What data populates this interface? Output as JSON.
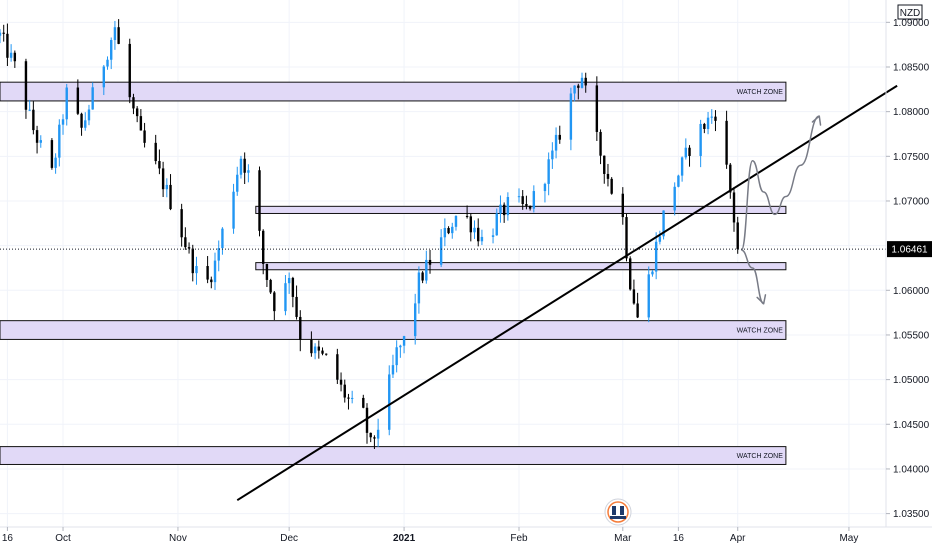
{
  "chart_data": {
    "type": "candlestick",
    "currency": "NZD",
    "current_price": 1.06461,
    "current_price_label": "1.06461",
    "ylim": [
      1.0335,
      1.0925
    ],
    "y_ticks": [
      1.035,
      1.04,
      1.045,
      1.05,
      1.055,
      1.06,
      1.065,
      1.07,
      1.075,
      1.08,
      1.085,
      1.09
    ],
    "y_tick_labels": [
      "1.03500",
      "1.04000",
      "1.04500",
      "1.05000",
      "1.05500",
      "1.06000",
      "",
      "1.07000",
      "1.07500",
      "1.08000",
      "1.08500",
      "1.09000"
    ],
    "x_axis": {
      "start": "2020-09-14",
      "end": "2021-05-11",
      "labels": [
        {
          "date": "2020-09-16",
          "text": "16",
          "bold": false
        },
        {
          "date": "2020-10-01",
          "text": "Oct",
          "bold": false
        },
        {
          "date": "2020-11-01",
          "text": "Nov",
          "bold": false
        },
        {
          "date": "2020-12-01",
          "text": "Dec",
          "bold": false
        },
        {
          "date": "2021-01-01",
          "text": "2021",
          "bold": true
        },
        {
          "date": "2021-02-01",
          "text": "Feb",
          "bold": false
        },
        {
          "date": "2021-03-01",
          "text": "Mar",
          "bold": false
        },
        {
          "date": "2021-03-16",
          "text": "16",
          "bold": false
        },
        {
          "date": "2021-04-01",
          "text": "Apr",
          "bold": false
        },
        {
          "date": "2021-05-01",
          "text": "May",
          "bold": false
        }
      ]
    },
    "price_path": [
      [
        "2020-09-14",
        1.0885
      ],
      [
        "2020-09-18",
        1.085
      ],
      [
        "2020-09-23",
        1.078
      ],
      [
        "2020-09-28",
        1.073
      ],
      [
        "2020-10-02",
        1.082
      ],
      [
        "2020-10-06",
        1.078
      ],
      [
        "2020-10-10",
        1.083
      ],
      [
        "2020-10-15",
        1.0895
      ],
      [
        "2020-10-18",
        1.083
      ],
      [
        "2020-10-22",
        1.077
      ],
      [
        "2020-10-27",
        1.073
      ],
      [
        "2020-10-31",
        1.069
      ],
      [
        "2020-11-04",
        1.064
      ],
      [
        "2020-11-08",
        1.06
      ],
      [
        "2020-11-11",
        1.063
      ],
      [
        "2020-11-15",
        1.07
      ],
      [
        "2020-11-18",
        1.075
      ],
      [
        "2020-11-21",
        1.072
      ],
      [
        "2020-11-24",
        1.063
      ],
      [
        "2020-11-28",
        1.057
      ],
      [
        "2020-12-01",
        1.062
      ],
      [
        "2020-12-04",
        1.055
      ],
      [
        "2020-12-08",
        1.053
      ],
      [
        "2020-12-12",
        1.052
      ],
      [
        "2020-12-15",
        1.049
      ],
      [
        "2020-12-18",
        1.047
      ],
      [
        "2020-12-21",
        1.046
      ],
      [
        "2020-12-23",
        1.0425
      ],
      [
        "2020-12-26",
        1.046
      ],
      [
        "2020-12-30",
        1.053
      ],
      [
        "2021-01-02",
        1.055
      ],
      [
        "2021-01-05",
        1.061
      ],
      [
        "2021-01-09",
        1.064
      ],
      [
        "2021-01-13",
        1.067
      ],
      [
        "2021-01-16",
        1.069
      ],
      [
        "2021-01-20",
        1.067
      ],
      [
        "2021-01-23",
        1.065
      ],
      [
        "2021-01-26",
        1.068
      ],
      [
        "2021-01-30",
        1.07
      ],
      [
        "2021-02-03",
        1.069
      ],
      [
        "2021-02-06",
        1.071
      ],
      [
        "2021-02-10",
        1.075
      ],
      [
        "2021-02-13",
        1.079
      ],
      [
        "2021-02-16",
        1.083
      ],
      [
        "2021-02-18",
        1.084
      ],
      [
        "2021-02-21",
        1.078
      ],
      [
        "2021-02-24",
        1.074
      ],
      [
        "2021-02-27",
        1.07
      ],
      [
        "2021-03-01",
        1.068
      ],
      [
        "2021-03-03",
        1.061
      ],
      [
        "2021-03-05",
        1.057
      ],
      [
        "2021-03-07",
        1.0595
      ],
      [
        "2021-03-10",
        1.065
      ],
      [
        "2021-03-13",
        1.07
      ],
      [
        "2021-03-16",
        1.073
      ],
      [
        "2021-03-19",
        1.076
      ],
      [
        "2021-03-22",
        1.078
      ],
      [
        "2021-03-25",
        1.0795
      ],
      [
        "2021-03-27",
        1.0805
      ],
      [
        "2021-03-28",
        1.076
      ],
      [
        "2021-03-30",
        1.071
      ],
      [
        "2021-03-31",
        1.068
      ],
      [
        "2021-04-01",
        1.0646
      ]
    ],
    "zones": [
      {
        "name": "zone-upper",
        "y_low": 1.0812,
        "y_high": 1.0833,
        "x_start": "2020-09-14",
        "x_end": "2021-04-14",
        "label": "WATCH ZONE"
      },
      {
        "name": "zone-mid-upper",
        "y_low": 1.0686,
        "y_high": 1.0694,
        "x_start": "2020-11-22",
        "x_end": "2021-04-14",
        "label": ""
      },
      {
        "name": "zone-mid-lower",
        "y_low": 1.0623,
        "y_high": 1.0631,
        "x_start": "2020-11-22",
        "x_end": "2021-04-14",
        "label": ""
      },
      {
        "name": "zone-middle",
        "y_low": 1.0545,
        "y_high": 1.0566,
        "x_start": "2020-09-14",
        "x_end": "2021-04-14",
        "label": "WATCH ZONE"
      },
      {
        "name": "zone-lower",
        "y_low": 1.0405,
        "y_high": 1.0425,
        "x_start": "2020-09-14",
        "x_end": "2021-04-14",
        "label": "WATCH ZONE"
      }
    ],
    "trendline": {
      "x1": "2020-11-17",
      "y1": 1.0365,
      "x2": "2021-05-14",
      "y2": 1.0829
    },
    "projection_up": [
      [
        "2021-04-02",
        1.0645
      ],
      [
        "2021-04-05",
        1.0745
      ],
      [
        "2021-04-08",
        1.071
      ],
      [
        "2021-04-11",
        1.0685
      ],
      [
        "2021-04-14",
        1.0705
      ],
      [
        "2021-04-18",
        1.074
      ],
      [
        "2021-04-23",
        1.0795
      ]
    ],
    "projection_down": [
      [
        "2021-04-02",
        1.0645
      ],
      [
        "2021-04-05",
        1.0625
      ],
      [
        "2021-04-08",
        1.0585
      ]
    ],
    "colors": {
      "up": "#2196f3",
      "down": "#000000",
      "zone_fill": "#e1d9f7",
      "zone_border": "#111111",
      "grid": "#f0f3fa",
      "trendline": "#000000",
      "projection": "#787b86",
      "price_badge": "#000000"
    }
  }
}
